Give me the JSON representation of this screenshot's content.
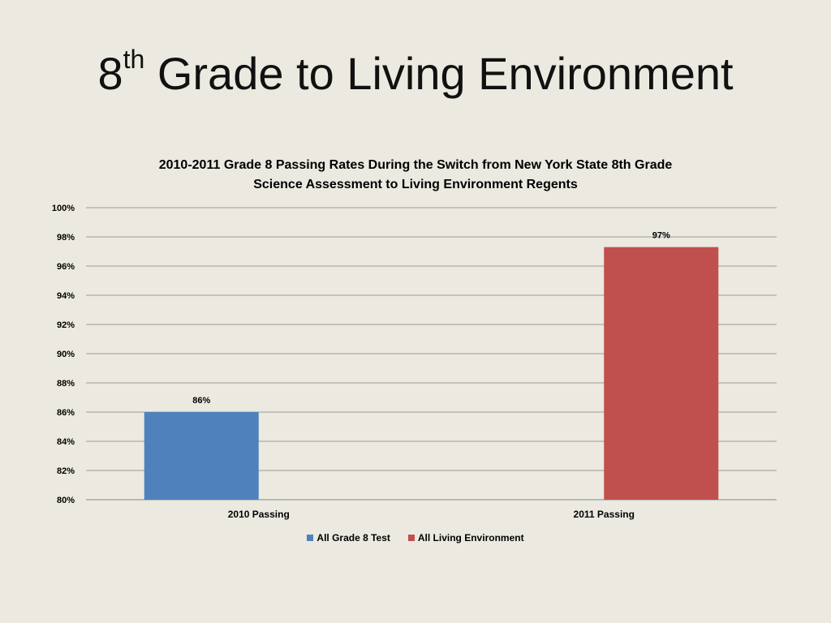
{
  "slide": {
    "title_main": "8",
    "title_sup": "th",
    "title_rest": " Grade to Living Environment"
  },
  "chart_data": {
    "type": "bar",
    "title_line1": "2010-2011 Grade 8 Passing Rates During the Switch from New York State 8th Grade",
    "title_line2": "Science Assessment to Living Environment Regents",
    "categories": [
      "2010 Passing",
      "2011 Passing"
    ],
    "series": [
      {
        "name": "All Grade 8 Test",
        "color": "#4f81bd",
        "values": [
          86,
          null
        ],
        "labels": [
          "86%",
          ""
        ]
      },
      {
        "name": "All Living Environment",
        "color": "#c0504d",
        "values": [
          null,
          97.3
        ],
        "labels": [
          "",
          "97%"
        ]
      }
    ],
    "ylim": [
      80,
      100
    ],
    "yticks": [
      "80%",
      "82%",
      "84%",
      "86%",
      "88%",
      "90%",
      "92%",
      "94%",
      "96%",
      "98%",
      "100%"
    ],
    "grid": true,
    "legend_position": "bottom"
  }
}
